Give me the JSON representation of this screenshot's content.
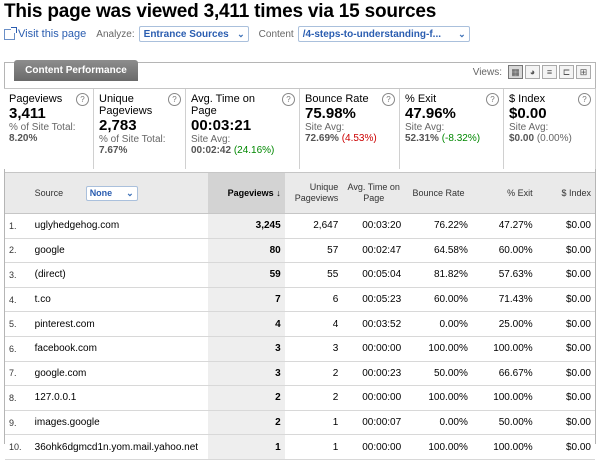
{
  "header": {
    "title": "This page was viewed 3,411 times via 15 sources",
    "visit_link": "Visit this page",
    "analyze_label": "Analyze:",
    "analyze_value": "Entrance Sources",
    "content_label": "Content",
    "content_value": "/4-steps-to-understanding-f..."
  },
  "panel": {
    "tab": "Content Performance",
    "views_label": "Views:"
  },
  "summary": [
    {
      "name": "Pageviews",
      "value": "3,411",
      "sub_label": "% of Site Total:",
      "sub_value": "8.20%",
      "sub_delta": ""
    },
    {
      "name": "Unique\nPageviews",
      "value": "2,783",
      "sub_label": "% of Site Total:",
      "sub_value": "7.67%",
      "sub_delta": ""
    },
    {
      "name": "Avg. Time on\nPage",
      "value": "00:03:21",
      "sub_label": "Site Avg:",
      "sub_value": "00:02:42",
      "sub_delta": "(24.16%)"
    },
    {
      "name": "Bounce Rate",
      "value": "75.98%",
      "sub_label": "Site Avg:",
      "sub_value": "72.69%",
      "sub_delta": "(4.53%)"
    },
    {
      "name": "% Exit",
      "value": "47.96%",
      "sub_label": "Site Avg:",
      "sub_value": "52.31%",
      "sub_delta": "(-8.32%)"
    },
    {
      "name": "$ Index",
      "value": "$0.00",
      "sub_label": "Site Avg:",
      "sub_value": "$0.00",
      "sub_delta": "(0.00%)"
    }
  ],
  "table": {
    "headers": {
      "source": "Source",
      "secondary": "None",
      "pageviews": "Pageviews",
      "unique": "Unique Pageviews",
      "avg_time": "Avg. Time on Page",
      "bounce": "Bounce Rate",
      "exit": "% Exit",
      "index": "$ Index"
    },
    "rows": [
      {
        "n": "1.",
        "source": "uglyhedgehog.com",
        "pv": "3,245",
        "upv": "2,647",
        "time": "00:03:20",
        "bounce": "76.22%",
        "exit": "47.27%",
        "idx": "$0.00"
      },
      {
        "n": "2.",
        "source": "google",
        "pv": "80",
        "upv": "57",
        "time": "00:02:47",
        "bounce": "64.58%",
        "exit": "60.00%",
        "idx": "$0.00"
      },
      {
        "n": "3.",
        "source": "(direct)",
        "pv": "59",
        "upv": "55",
        "time": "00:05:04",
        "bounce": "81.82%",
        "exit": "57.63%",
        "idx": "$0.00"
      },
      {
        "n": "4.",
        "source": "t.co",
        "pv": "7",
        "upv": "6",
        "time": "00:05:23",
        "bounce": "60.00%",
        "exit": "71.43%",
        "idx": "$0.00"
      },
      {
        "n": "5.",
        "source": "pinterest.com",
        "pv": "4",
        "upv": "4",
        "time": "00:03:52",
        "bounce": "0.00%",
        "exit": "25.00%",
        "idx": "$0.00"
      },
      {
        "n": "6.",
        "source": "facebook.com",
        "pv": "3",
        "upv": "3",
        "time": "00:00:00",
        "bounce": "100.00%",
        "exit": "100.00%",
        "idx": "$0.00"
      },
      {
        "n": "7.",
        "source": "google.com",
        "pv": "3",
        "upv": "2",
        "time": "00:00:23",
        "bounce": "50.00%",
        "exit": "66.67%",
        "idx": "$0.00"
      },
      {
        "n": "8.",
        "source": "127.0.0.1",
        "pv": "2",
        "upv": "2",
        "time": "00:00:00",
        "bounce": "100.00%",
        "exit": "100.00%",
        "idx": "$0.00"
      },
      {
        "n": "9.",
        "source": "images.google",
        "pv": "2",
        "upv": "1",
        "time": "00:00:07",
        "bounce": "0.00%",
        "exit": "50.00%",
        "idx": "$0.00"
      },
      {
        "n": "10.",
        "source": "36ohk6dgmcd1n.yom.mail.yahoo.net",
        "pv": "1",
        "upv": "1",
        "time": "00:00:00",
        "bounce": "100.00%",
        "exit": "100.00%",
        "idx": "$0.00"
      }
    ]
  },
  "icons": {
    "external": "external-link-icon",
    "help": "help-icon",
    "dropdown": "chevron-down-icon",
    "sort": "sort-arrow-down-icon"
  },
  "colors": {
    "link": "#2a5db0",
    "negative": "#cc0000",
    "positive": "#008800"
  }
}
